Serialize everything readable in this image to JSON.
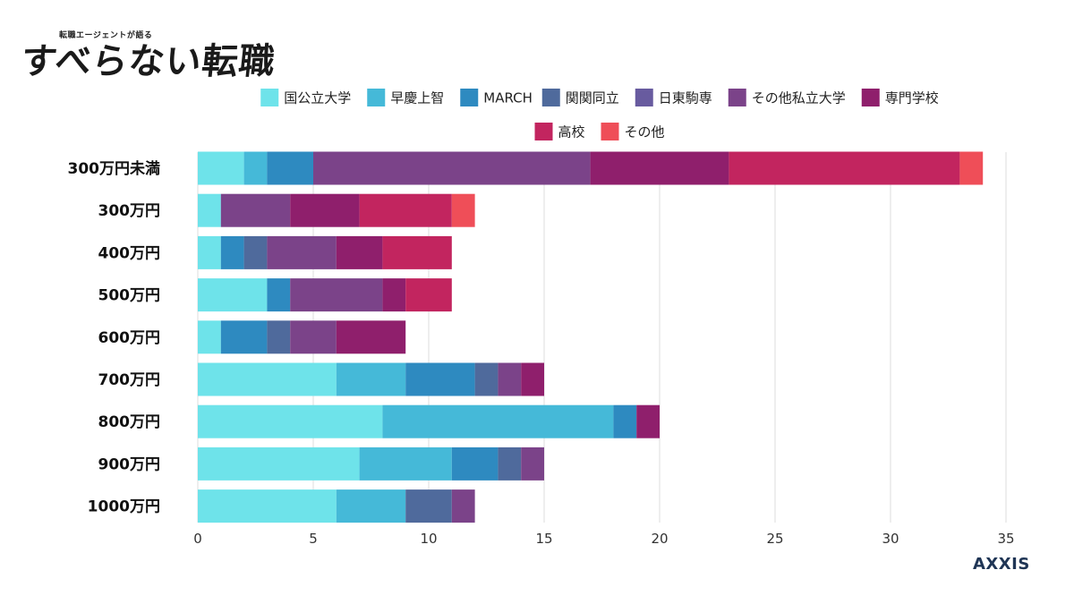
{
  "logo": {
    "tagline": "転職エージェントが語る",
    "title": "すべらない転職"
  },
  "brand": "AXXIS",
  "chart_data": {
    "type": "bar",
    "orientation": "horizontal",
    "stacked": true,
    "categories": [
      "300万円未満",
      "300万円",
      "400万円",
      "500万円",
      "600万円",
      "700万円",
      "800万円",
      "900万円",
      "1000万円"
    ],
    "xlim": [
      0,
      35
    ],
    "xticks": [
      0,
      5,
      10,
      15,
      20,
      25,
      30,
      35
    ],
    "grid": true,
    "legend_position": "top",
    "series": [
      {
        "name": "国公立大学",
        "color": "#6ee3ea",
        "values": [
          2,
          1,
          1,
          3,
          1,
          6,
          8,
          7,
          6
        ]
      },
      {
        "name": "早慶上智",
        "color": "#45b9d8",
        "values": [
          1,
          0,
          0,
          0,
          0,
          3,
          10,
          4,
          3
        ]
      },
      {
        "name": "MARCH",
        "color": "#2e8ac0",
        "values": [
          2,
          0,
          1,
          1,
          2,
          3,
          1,
          2,
          0
        ]
      },
      {
        "name": "関関同立",
        "color": "#4f6a9c",
        "values": [
          0,
          0,
          1,
          0,
          1,
          1,
          0,
          1,
          2
        ]
      },
      {
        "name": "日東駒専",
        "color": "#685b9f",
        "values": [
          0,
          0,
          0,
          0,
          0,
          0,
          0,
          0,
          0
        ]
      },
      {
        "name": "その他私立大学",
        "color": "#7b4389",
        "values": [
          12,
          3,
          3,
          4,
          2,
          1,
          0,
          1,
          1
        ]
      },
      {
        "name": "専門学校",
        "color": "#8f1f6c",
        "values": [
          6,
          3,
          2,
          1,
          3,
          1,
          1,
          0,
          0
        ]
      },
      {
        "name": "高校",
        "color": "#c2255f",
        "values": [
          10,
          4,
          3,
          2,
          0,
          0,
          0,
          0,
          0
        ]
      },
      {
        "name": "その他",
        "color": "#ef4e58",
        "values": [
          1,
          1,
          0,
          0,
          0,
          0,
          0,
          0,
          0
        ]
      }
    ]
  }
}
